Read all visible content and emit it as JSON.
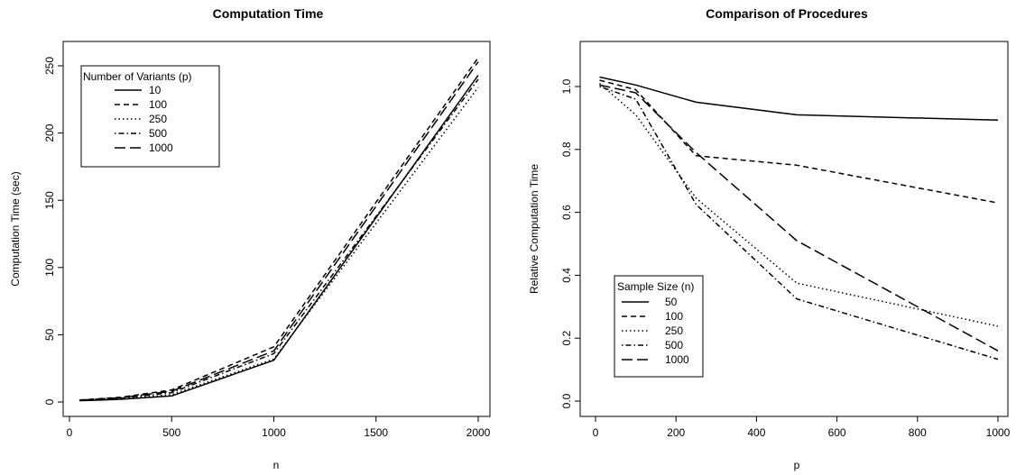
{
  "chart_data": [
    {
      "type": "line",
      "title": "Computation Time",
      "xlabel": "n",
      "ylabel": "Computation Time (sec)",
      "xlim": [
        0,
        2000
      ],
      "ylim": [
        0,
        250
      ],
      "xticks": [
        "0",
        "500",
        "1000",
        "1500",
        "2000"
      ],
      "yticks": [
        "0",
        "50",
        "100",
        "150",
        "200",
        "250"
      ],
      "x": [
        50,
        100,
        250,
        500,
        1000,
        2000
      ],
      "legend_title": "Number of Variants (p)",
      "legend_position": "top-left",
      "series": [
        {
          "name": "10",
          "linestyle": "solid",
          "values": [
            1.0,
            1.2,
            2.0,
            4.5,
            31,
            243
          ]
        },
        {
          "name": "100",
          "linestyle": "dashed",
          "values": [
            1.5,
            2.0,
            3.5,
            9,
            41,
            256
          ]
        },
        {
          "name": "250",
          "linestyle": "dotted",
          "values": [
            1.0,
            1.3,
            2.3,
            5.5,
            32,
            234
          ]
        },
        {
          "name": "500",
          "linestyle": "dotdash",
          "values": [
            1.2,
            1.5,
            2.8,
            7,
            36,
            240
          ]
        },
        {
          "name": "1000",
          "linestyle": "longdash",
          "values": [
            1.3,
            1.8,
            3.2,
            8,
            38,
            253
          ]
        }
      ]
    },
    {
      "type": "line",
      "title": "Comparison of Procedures",
      "xlabel": "p",
      "ylabel": "Relative Computation Time",
      "xlim": [
        0,
        1000
      ],
      "ylim": [
        0,
        1
      ],
      "xticks": [
        "0",
        "200",
        "400",
        "600",
        "800",
        "1000"
      ],
      "yticks": [
        "0.0",
        "0.2",
        "0.4",
        "0.6",
        "0.8",
        "1.0"
      ],
      "x": [
        10,
        100,
        250,
        500,
        1000
      ],
      "legend_title": "Sample Size (n)",
      "legend_position": "bottom-left",
      "series": [
        {
          "name": "50",
          "linestyle": "solid",
          "values": [
            1.03,
            1.005,
            0.95,
            0.91,
            0.893
          ]
        },
        {
          "name": "100",
          "linestyle": "dashed",
          "values": [
            1.02,
            0.99,
            0.78,
            0.75,
            0.63
          ]
        },
        {
          "name": "250",
          "linestyle": "dotted",
          "values": [
            1.01,
            0.91,
            0.645,
            0.375,
            0.238
          ]
        },
        {
          "name": "500",
          "linestyle": "dotdash",
          "values": [
            1.0,
            0.96,
            0.625,
            0.325,
            0.133
          ]
        },
        {
          "name": "1000",
          "linestyle": "longdash",
          "values": [
            1.005,
            0.98,
            0.79,
            0.51,
            0.16
          ]
        }
      ]
    }
  ]
}
